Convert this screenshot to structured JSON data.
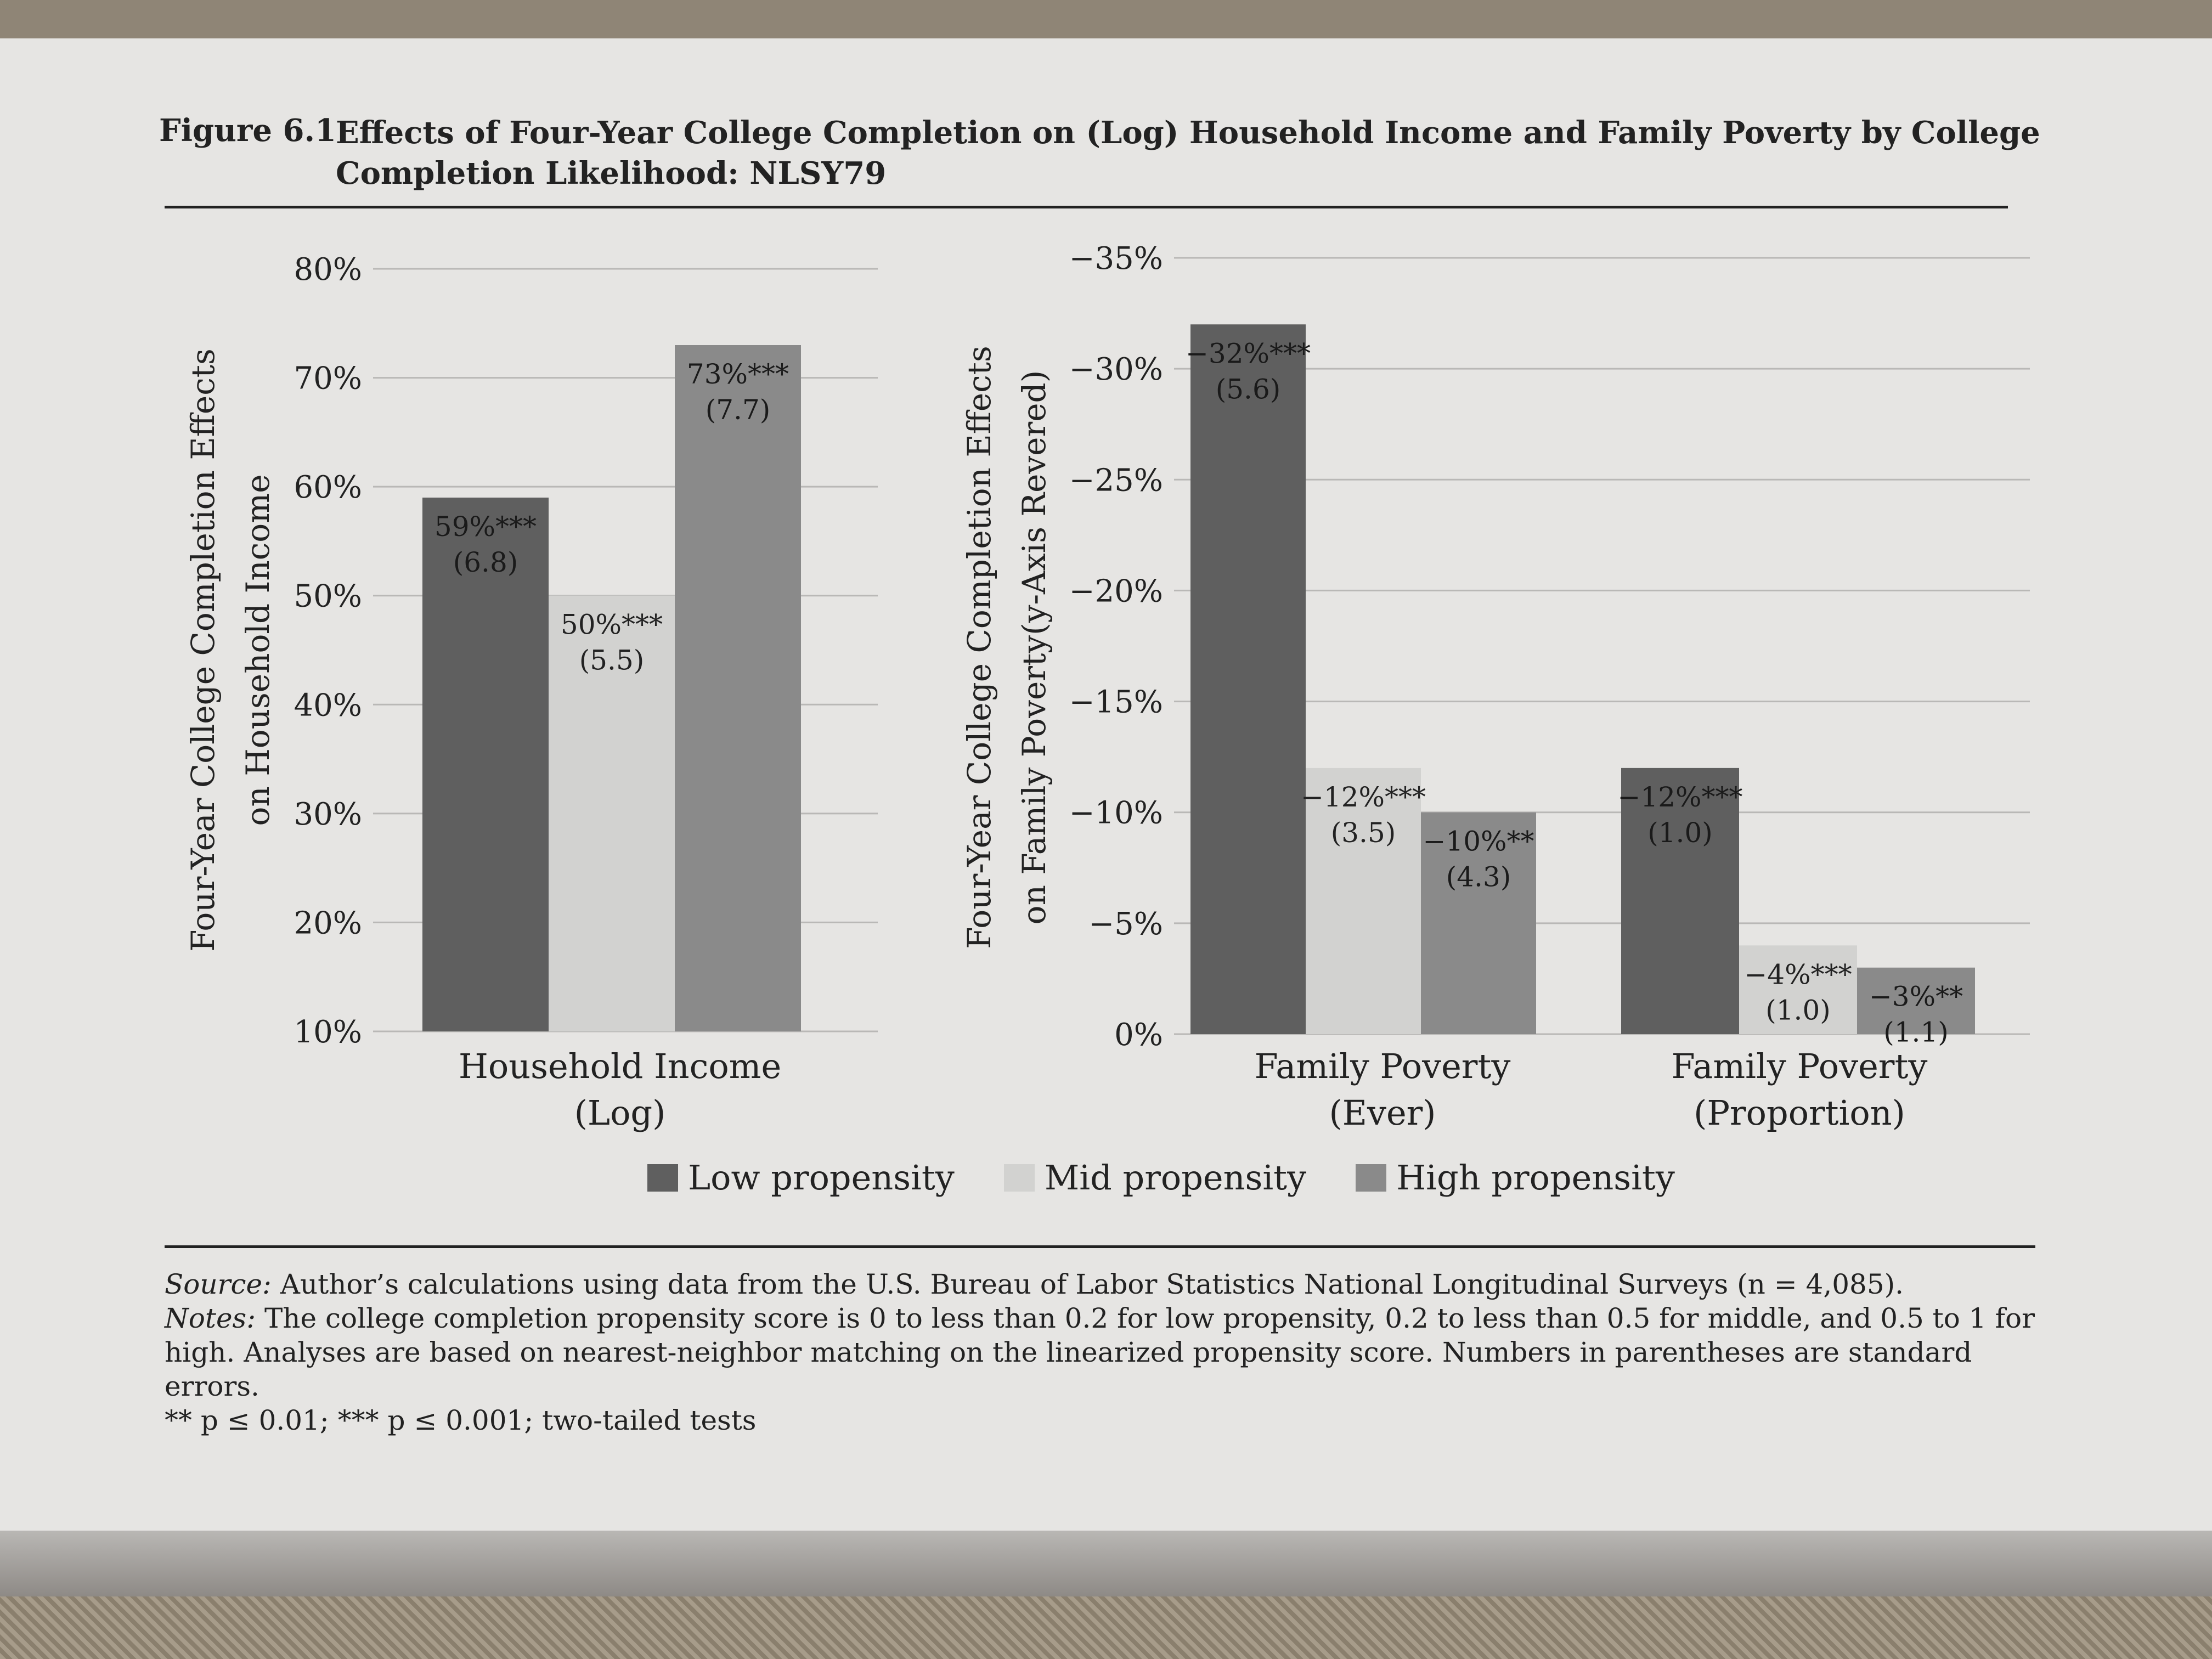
{
  "figure": {
    "label": "Figure 6.1",
    "title": "Effects of Four-Year College Completion on (Log) Household Income and Family Poverty by College Completion Likelihood: NLSY79"
  },
  "legend": [
    {
      "label": "Low propensity",
      "color": "#5f5f5f"
    },
    {
      "label": "Mid propensity",
      "color": "#d2d2d0"
    },
    {
      "label": "High propensity",
      "color": "#8a8a8a"
    }
  ],
  "notes": {
    "source_label": "Source:",
    "source_text": "Author’s calculations using data from the U.S. Bureau of Labor Statistics National Longitudinal Surveys (n = 4,085).",
    "notes_label": "Notes:",
    "notes_text": "The college completion propensity score is 0 to less than 0.2 for low propensity, 0.2 to less than 0.5 for middle, and 0.5 to 1 for high. Analyses are based on nearest-neighbor matching on the linearized propensity score. Numbers in parentheses are standard errors.",
    "significance": "** p ≤ 0.01; *** p ≤ 0.001; two-tailed tests"
  },
  "chart_data": [
    {
      "type": "bar",
      "ylabel": [
        "Four-Year College Completion Effects",
        "on Household Income"
      ],
      "ylim": [
        10,
        80
      ],
      "yticks": [
        "80%",
        "70%",
        "60%",
        "50%",
        "40%",
        "30%",
        "20%",
        "10%"
      ],
      "grid": true,
      "categories": [
        [
          "Household Income",
          "(Log)"
        ]
      ],
      "series": [
        {
          "name": "Low propensity",
          "values": [
            59
          ],
          "labels": [
            "59%***"
          ],
          "se": [
            "(6.8)"
          ]
        },
        {
          "name": "Mid propensity",
          "values": [
            50
          ],
          "labels": [
            "50%***"
          ],
          "se": [
            "(5.5)"
          ]
        },
        {
          "name": "High propensity",
          "values": [
            73
          ],
          "labels": [
            "73%***"
          ],
          "se": [
            "(7.7)"
          ]
        }
      ]
    },
    {
      "type": "bar",
      "ylabel": [
        "Four-Year College Completion Effects",
        "on Family Poverty(y-Axis Revered)"
      ],
      "ylim": [
        0,
        -35
      ],
      "y_reversed": true,
      "yticks": [
        "−35%",
        "−30%",
        "−25%",
        "−20%",
        "−15%",
        "−10%",
        "−5%",
        "0%"
      ],
      "grid": true,
      "categories": [
        [
          "Family Poverty",
          "(Ever)"
        ],
        [
          "Family Poverty",
          "(Proportion)"
        ]
      ],
      "series": [
        {
          "name": "Low propensity",
          "values": [
            -32,
            -12
          ],
          "labels": [
            "−32%***",
            "−12%***"
          ],
          "se": [
            "(5.6)",
            "(1.0)"
          ]
        },
        {
          "name": "Mid propensity",
          "values": [
            -12,
            -4
          ],
          "labels": [
            "−12%***",
            "−4%***"
          ],
          "se": [
            "(3.5)",
            "(1.0)"
          ]
        },
        {
          "name": "High propensity",
          "values": [
            -10,
            -3
          ],
          "labels": [
            "−10%**",
            "−3%**"
          ],
          "se": [
            "(4.3)",
            "(1.1)"
          ]
        }
      ]
    }
  ]
}
